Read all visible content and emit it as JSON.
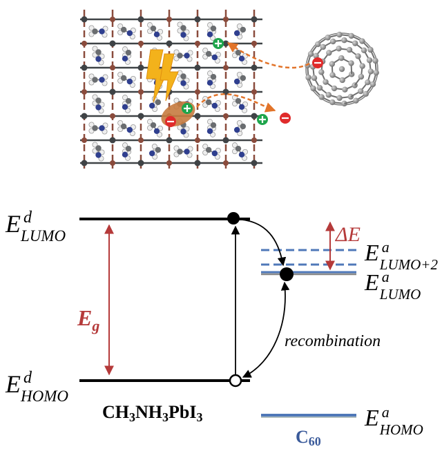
{
  "colors": {
    "black": "#000000",
    "red": "#b53a3a",
    "blue": "#4f78b8",
    "lead": "#3f4346",
    "iodine": "#8a4b3c",
    "nitrogen": "#2f3f8f",
    "hydrogen": "#eeeeee",
    "carbon": "#6a6d70",
    "c60": "#8d8d8d",
    "arrow_orange": "#e2742a",
    "lightning": "#f3b21b",
    "exciton": "#c77b3f",
    "hole_green": "#1ea54b",
    "electron_red": "#e02b2b"
  },
  "icons": {
    "hole": "plus-circle-icon",
    "electron": "minus-circle-icon",
    "photon": "lightning-icon",
    "fullerene": "c60-molecule-icon"
  },
  "levels": {
    "donor_lumo": {
      "main": "E",
      "sup": "d",
      "sub": "LUMO"
    },
    "donor_homo": {
      "main": "E",
      "sup": "d",
      "sub": "HOMO"
    },
    "acceptor_lumo2": {
      "main": "E",
      "sup": "a",
      "sub": "LUMO+2"
    },
    "acceptor_lumo": {
      "main": "E",
      "sup": "a",
      "sub": "LUMO"
    },
    "acceptor_homo": {
      "main": "E",
      "sup": "a",
      "sub": "HOMO"
    }
  },
  "gap": {
    "main": "E",
    "sub": "g"
  },
  "delta": "ΔE",
  "recombination": "recombination",
  "donor_material": {
    "p1": "CH",
    "s1": "3",
    "p2": "NH",
    "s2": "3",
    "p3": "PbI",
    "s3": "3"
  },
  "acceptor_material": {
    "p1": "C",
    "s1": "60"
  }
}
